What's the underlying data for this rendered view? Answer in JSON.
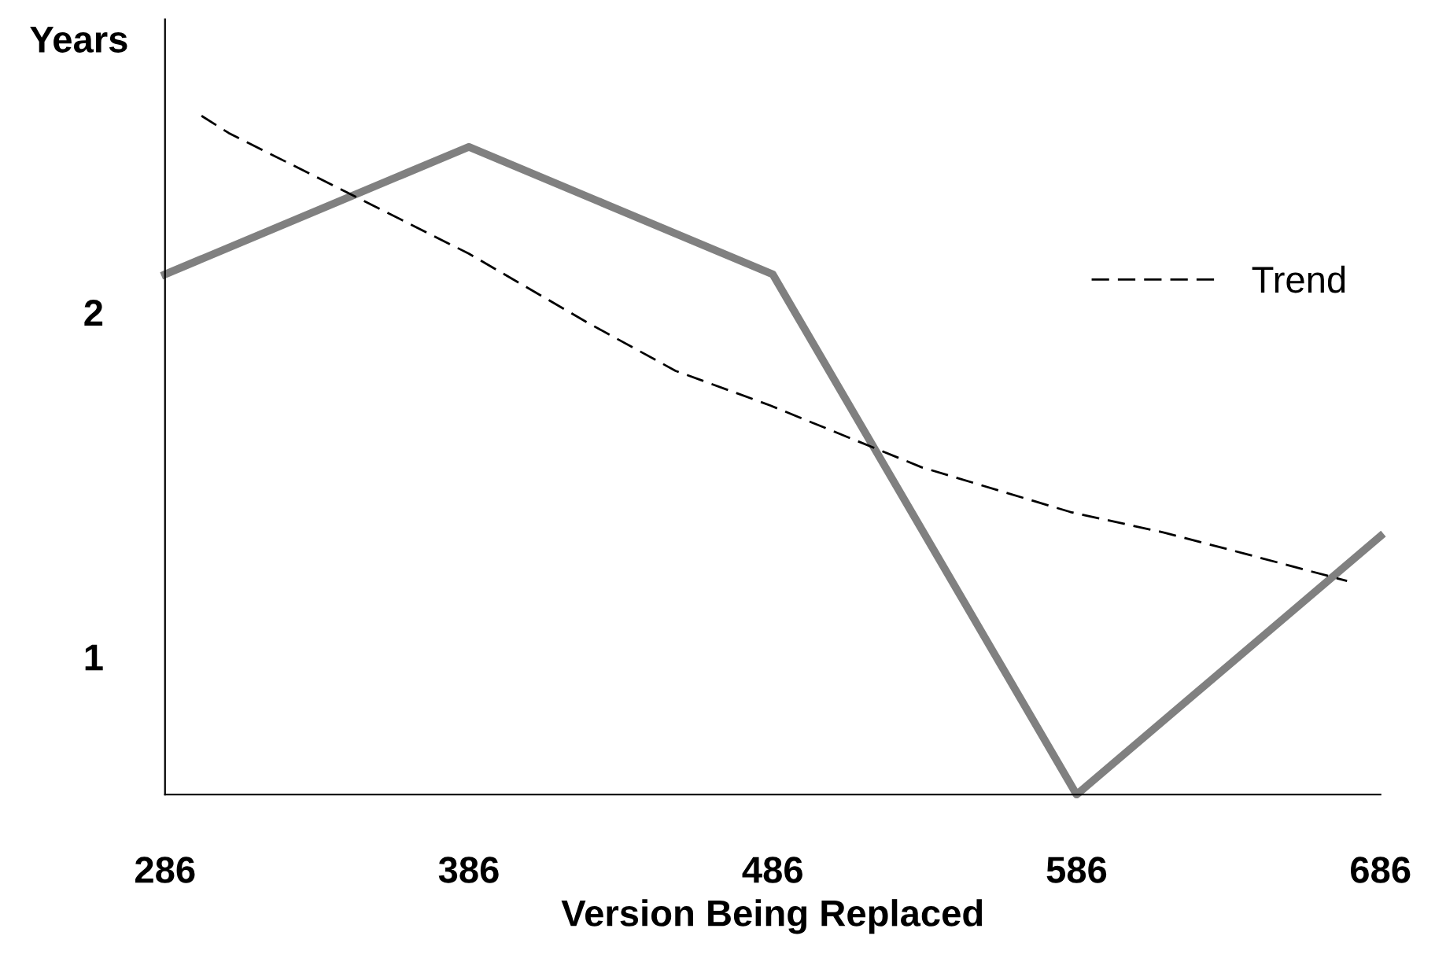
{
  "chart_data": {
    "type": "line",
    "xlabel": "Version Being Replaced",
    "ylabel": "Years",
    "xlim": [
      286,
      686
    ],
    "xticks": [
      286,
      386,
      486,
      586,
      686
    ],
    "ylim": [
      0.6,
      2.85
    ],
    "yticks": [
      1,
      2
    ],
    "series": [
      {
        "color": "#808080",
        "x": [
          286,
          386,
          486,
          586,
          686
        ],
        "values": [
          2.11,
          2.48,
          2.11,
          0.6,
          1.35
        ],
        "line_style": "solid"
      },
      {
        "name": "Trend",
        "color": "#000000",
        "line_style": "dashed",
        "x": [
          298,
          307,
          386,
          425,
          454,
          485,
          535,
          584,
          615,
          641,
          675
        ],
        "values": [
          2.57,
          2.52,
          2.17,
          1.97,
          1.83,
          1.73,
          1.55,
          1.42,
          1.36,
          1.3,
          1.22
        ]
      }
    ],
    "legend": "right",
    "grid": false,
    "marker": "none"
  }
}
